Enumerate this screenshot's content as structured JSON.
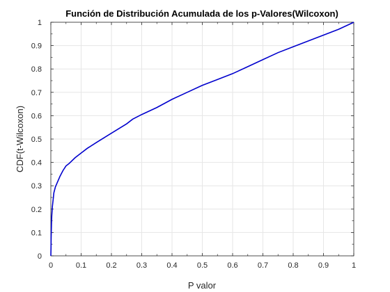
{
  "chart_data": {
    "type": "line",
    "title": "Función de Distribución Acumulada de los p-Valores(Wilcoxon)",
    "xlabel": "P valor",
    "ylabel": "CDF(t-Wilcoxon)",
    "xlim": [
      0,
      1
    ],
    "ylim": [
      0,
      1
    ],
    "xticks": [
      0,
      0.1,
      0.2,
      0.3,
      0.4,
      0.5,
      0.6,
      0.7,
      0.8,
      0.9,
      1
    ],
    "yticks": [
      0,
      0.1,
      0.2,
      0.3,
      0.4,
      0.5,
      0.6,
      0.7,
      0.8,
      0.9,
      1
    ],
    "xtick_labels": [
      "0",
      "0.1",
      "0.2",
      "0.3",
      "0.4",
      "0.5",
      "0.6",
      "0.7",
      "0.8",
      "0.9",
      "1"
    ],
    "ytick_labels": [
      "0",
      "0.1",
      "0.2",
      "0.3",
      "0.4",
      "0.5",
      "0.6",
      "0.7",
      "0.8",
      "0.9",
      "1"
    ],
    "grid": true,
    "line_color": "#0000cd",
    "series": [
      {
        "x": [
          0,
          0.0005,
          0.001,
          0.002,
          0.003,
          0.005,
          0.008,
          0.01,
          0.015,
          0.02,
          0.03,
          0.04,
          0.05,
          0.06,
          0.08,
          0.1,
          0.12,
          0.15,
          0.2,
          0.25,
          0.27,
          0.3,
          0.35,
          0.4,
          0.45,
          0.5,
          0.55,
          0.6,
          0.65,
          0.7,
          0.75,
          0.8,
          0.85,
          0.9,
          0.95,
          1.0
        ],
        "y": [
          0,
          0.03,
          0.08,
          0.13,
          0.17,
          0.21,
          0.245,
          0.27,
          0.295,
          0.31,
          0.34,
          0.365,
          0.385,
          0.395,
          0.42,
          0.44,
          0.46,
          0.485,
          0.525,
          0.565,
          0.585,
          0.605,
          0.635,
          0.67,
          0.7,
          0.73,
          0.755,
          0.78,
          0.81,
          0.84,
          0.87,
          0.895,
          0.92,
          0.945,
          0.97,
          1.0
        ]
      }
    ]
  }
}
